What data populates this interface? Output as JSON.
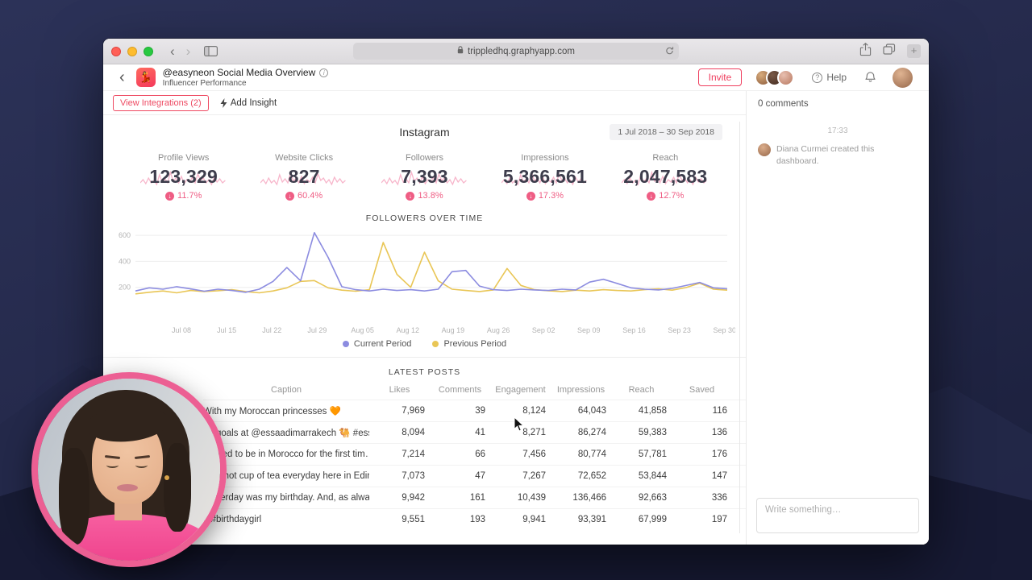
{
  "browser": {
    "url": "trippledhq.graphyapp.com",
    "new_tab_label": "+"
  },
  "header": {
    "title": "@easyneon Social Media Overview",
    "subtitle": "Influencer Performance",
    "invite": "Invite",
    "help": "Help"
  },
  "toolbar": {
    "view_integrations": "View Integrations (2)",
    "add_insight": "Add Insight"
  },
  "main": {
    "platform": "Instagram",
    "date_range": "1 Jul 2018 – 30 Sep 2018",
    "metrics": [
      {
        "label": "Profile Views",
        "value": "123,329",
        "change": "11.7%"
      },
      {
        "label": "Website Clicks",
        "value": "827",
        "change": "60.4%"
      },
      {
        "label": "Followers",
        "value": "7,393",
        "change": "13.8%"
      },
      {
        "label": "Impressions",
        "value": "5,366,561",
        "change": "17.3%"
      },
      {
        "label": "Reach",
        "value": "2,047,583",
        "change": "12.7%"
      }
    ],
    "posts_title": "LATEST POSTS",
    "table": {
      "columns": [
        "Caption",
        "Likes",
        "Comments",
        "Engagement",
        "Impressions",
        "Reach",
        "Saved"
      ],
      "rows": [
        [
          "With my Moroccan princesses 🧡",
          "7,969",
          "39",
          "8,124",
          "64,043",
          "41,858",
          "116"
        ],
        [
          "pa goals at @essaadimarrakech 🐫 #essa…",
          "8,094",
          "41",
          "8,271",
          "86,274",
          "59,383",
          "136"
        ],
        [
          "excited to be in Morocco for the first tim…",
          "7,214",
          "66",
          "7,456",
          "80,774",
          "57,781",
          "176"
        ],
        [
          "ed a hot cup of tea everyday here in Edin…",
          "7,073",
          "47",
          "7,267",
          "72,652",
          "53,844",
          "147"
        ],
        [
          "yesterday was my birthday. And, as alwa…",
          "9,942",
          "161",
          "10,439",
          "136,466",
          "92,663",
          "336"
        ],
        [
          "6 #birthdaygirl",
          "9,551",
          "193",
          "9,941",
          "93,391",
          "67,999",
          "197"
        ]
      ]
    }
  },
  "comments": {
    "count": "0 comments",
    "time": "17:33",
    "activity": "Diana Curmei created this dashboard.",
    "placeholder": "Write something…"
  },
  "colors": {
    "accent_red": "#ef3e5e",
    "change_pink": "#ef5d84",
    "sparkline_pink": "#f7afc6",
    "current_period": "#8c8ce0",
    "previous_period": "#e9c656"
  },
  "chart_data": {
    "type": "line",
    "title": "FOLLOWERS OVER TIME",
    "x_tick_labels": [
      "Jul 08",
      "Jul 15",
      "Jul 22",
      "Jul 29",
      "Aug 05",
      "Aug 12",
      "Aug 19",
      "Aug 26",
      "Sep 02",
      "Sep 09",
      "Sep 16",
      "Sep 23",
      "Sep 30"
    ],
    "y_ticks": [
      200,
      400,
      600
    ],
    "ylim": [
      0,
      650
    ],
    "grid": true,
    "legend_position": "bottom",
    "series": [
      {
        "name": "Current Period",
        "color": "#8c8ce0",
        "values": [
          172,
          196,
          186,
          205,
          188,
          170,
          186,
          176,
          162,
          186,
          246,
          352,
          250,
          620,
          430,
          205,
          182,
          172,
          186,
          176,
          182,
          172,
          186,
          320,
          330,
          210,
          182,
          176,
          186,
          180,
          176,
          186,
          180,
          240,
          262,
          230,
          196,
          186,
          180,
          192,
          214,
          238,
          196,
          188
        ]
      },
      {
        "name": "Previous Period",
        "color": "#e9c656",
        "values": [
          150,
          162,
          172,
          158,
          176,
          168,
          174,
          182,
          168,
          158,
          172,
          196,
          246,
          252,
          196,
          178,
          170,
          182,
          545,
          300,
          200,
          470,
          250,
          186,
          176,
          168,
          180,
          345,
          215,
          182,
          174,
          168,
          178,
          172,
          182,
          176,
          172,
          182,
          188,
          178,
          198,
          232,
          186,
          178
        ]
      }
    ]
  }
}
